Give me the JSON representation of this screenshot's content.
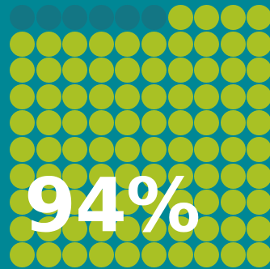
{
  "stat": {
    "value_label": "94%",
    "percent": 94
  },
  "grid": {
    "columns": 10,
    "rows": 10,
    "highlighted_count": 94,
    "highlight_color": "#a9c124",
    "muted_color": "#137684",
    "background_color": "#008795"
  }
}
